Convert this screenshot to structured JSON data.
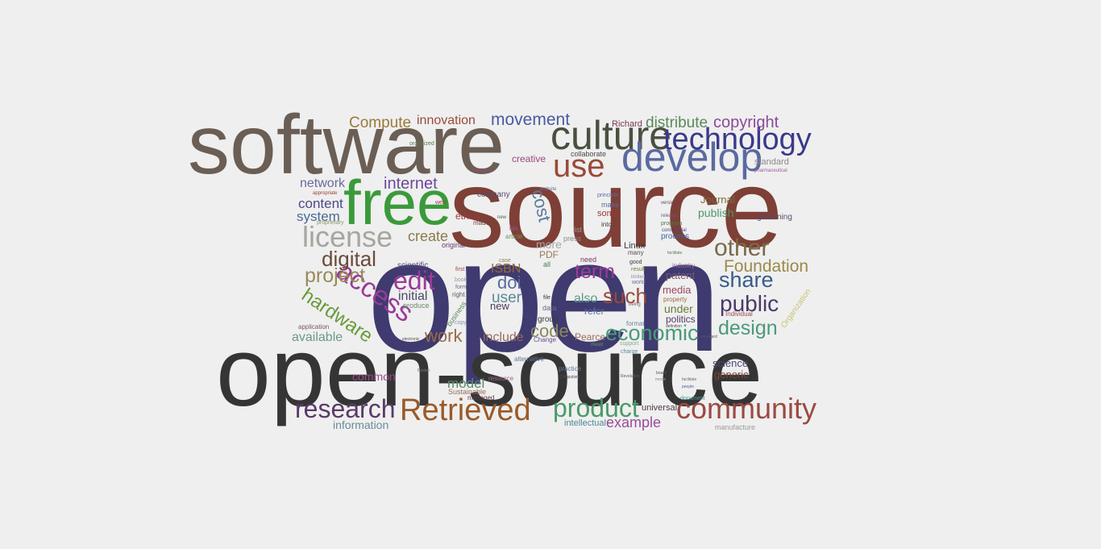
{
  "background_color": "#efefef",
  "words": [
    {
      "text": "open",
      "color": "#3f3a6f"
    },
    {
      "text": "open-source",
      "color": "#353535"
    },
    {
      "text": "software",
      "color": "#6a5e55"
    },
    {
      "text": "source",
      "color": "#7e3f36"
    },
    {
      "text": "free",
      "color": "#3a9a3a"
    },
    {
      "text": "culture",
      "color": "#4a5040"
    },
    {
      "text": "develop",
      "color": "#5a6aa0"
    },
    {
      "text": "technology",
      "color": "#3a3a8a"
    },
    {
      "text": "use",
      "color": "#9a4a3a"
    },
    {
      "text": "license",
      "color": "#a6a6a0"
    },
    {
      "text": "community",
      "color": "#9a4a42"
    },
    {
      "text": "Retrieved",
      "color": "#9a5a2a"
    },
    {
      "text": "research",
      "color": "#5a3a6a"
    },
    {
      "text": "product",
      "color": "#4a9a6a"
    },
    {
      "text": "edit",
      "color": "#9a3a9a"
    },
    {
      "text": "access",
      "color": "#9a3a9a"
    },
    {
      "text": "public",
      "color": "#4a3a6a"
    },
    {
      "text": "other",
      "color": "#7a6a4a"
    },
    {
      "text": "share",
      "color": "#3a5a8a"
    },
    {
      "text": "design",
      "color": "#4a9a7a"
    },
    {
      "text": "economic",
      "color": "#4a9a7a"
    },
    {
      "text": "such",
      "color": "#9a4a3a"
    },
    {
      "text": "term",
      "color": "#9a3a9a"
    },
    {
      "text": "digital",
      "color": "#6a4a3a"
    },
    {
      "text": "project",
      "color": "#9a8a5a"
    },
    {
      "text": "hardware",
      "color": "#6a9a3a"
    },
    {
      "text": "internet",
      "color": "#6a4a9a"
    },
    {
      "text": "cost",
      "color": "#5a7a9a"
    },
    {
      "text": "movement",
      "color": "#4a5aa0"
    },
    {
      "text": "copyright",
      "color": "#8a4a9a"
    },
    {
      "text": "distribute",
      "color": "#5a8a5a"
    },
    {
      "text": "Compute",
      "color": "#9a7a3a"
    },
    {
      "text": "innovation",
      "color": "#9a4a3a"
    },
    {
      "text": "Foundation",
      "color": "#9a8a4a"
    },
    {
      "text": "work",
      "color": "#9a6a4a"
    },
    {
      "text": "code",
      "color": "#8a8a5a"
    },
    {
      "text": "doi",
      "color": "#5a6aa0"
    },
    {
      "text": "user",
      "color": "#5a8a9a"
    },
    {
      "text": "model",
      "color": "#5a8a6a"
    },
    {
      "text": "example",
      "color": "#9a4a9a"
    },
    {
      "text": "common",
      "color": "#9a4a8a"
    },
    {
      "text": "available",
      "color": "#6a9a8a"
    },
    {
      "text": "information",
      "color": "#6a8a9a"
    },
    {
      "text": "create",
      "color": "#8a7a4a"
    },
    {
      "text": "content",
      "color": "#4a4a8a"
    },
    {
      "text": "system",
      "color": "#4a6a9a"
    },
    {
      "text": "network",
      "color": "#6a6a9a"
    },
    {
      "text": "initial",
      "color": "#4a4a6a"
    },
    {
      "text": "ISBN",
      "color": "#9a6a3a"
    },
    {
      "text": "include",
      "color": "#9a6a5a"
    },
    {
      "text": "science",
      "color": "#4a4a7a"
    },
    {
      "text": "generic",
      "color": "#7a4a3a"
    },
    {
      "text": "patent",
      "color": "#7a5a7a"
    },
    {
      "text": "media",
      "color": "#9a4a5a"
    },
    {
      "text": "under",
      "color": "#6a7a3a"
    },
    {
      "text": "politics",
      "color": "#5a3a6a"
    },
    {
      "text": "Journal",
      "color": "#7a6a3a"
    },
    {
      "text": "publish",
      "color": "#4a9a6a"
    },
    {
      "text": "governing",
      "color": "#5a4a6a"
    },
    {
      "text": "standard",
      "color": "#8a8a8a"
    },
    {
      "text": "also",
      "color": "#5a9a8a"
    },
    {
      "text": "new",
      "color": "#4a3a5a"
    },
    {
      "text": "more",
      "color": "#a6a6a6"
    },
    {
      "text": "PDF",
      "color": "#9a7a5a"
    },
    {
      "text": "ethics",
      "color": "#9a3a3a"
    },
    {
      "text": "creative",
      "color": "#9a4a7a"
    },
    {
      "text": "Richard",
      "color": "#7a3a4a"
    },
    {
      "text": "Pearce",
      "color": "#9a6a5a"
    },
    {
      "text": "refer",
      "color": "#5a6aa0"
    },
    {
      "text": "Linux",
      "color": "#3a3a3a"
    },
    {
      "text": "universal",
      "color": "#4a3a4a"
    },
    {
      "text": "intellectual",
      "color": "#4a8a9a"
    },
    {
      "text": "Sustainable",
      "color": "#9a6a5a"
    },
    {
      "text": "manufacture",
      "color": "#9a9a9a"
    },
    {
      "text": "Organization",
      "color": "#c8c470"
    },
    {
      "text": "some",
      "color": "#9a3a3a"
    },
    {
      "text": "company",
      "color": "#5a4a6a"
    },
    {
      "text": "process",
      "color": "#3a6aa0"
    },
    {
      "text": "group",
      "color": "#3a3a3a"
    },
    {
      "text": "data",
      "color": "#6a6a8a"
    },
    {
      "text": "collaborate",
      "color": "#4a4a4a"
    },
    {
      "text": "original",
      "color": "#6a3a6a"
    },
    {
      "text": "Change",
      "color": "#6a4a9a"
    },
    {
      "text": "practice",
      "color": "#5a7a9a"
    },
    {
      "text": "alternative",
      "color": "#5a7a9a"
    },
    {
      "text": "produce",
      "color": "#6a8a6a"
    },
    {
      "text": "scientific",
      "color": "#5a4a7a"
    },
    {
      "text": "managed",
      "color": "#5a3a4a"
    },
    {
      "text": "business",
      "color": "#5a8a5a"
    },
    {
      "text": "application",
      "color": "#7a5a5a"
    },
    {
      "text": "need",
      "color": "#7a3a6a"
    },
    {
      "text": "many",
      "color": "#5a4a4a"
    },
    {
      "text": "good",
      "color": "#3a3a3a"
    },
    {
      "text": "web",
      "color": "#9a3a4a"
    },
    {
      "text": "press",
      "color": "#8a8a8a"
    },
    {
      "text": "make",
      "color": "#5a6aa0"
    },
    {
      "text": "resource",
      "color": "#9a6a8a"
    },
    {
      "text": "document",
      "color": "#4a9a8a"
    },
    {
      "text": "format",
      "color": "#6a8a9a"
    },
    {
      "text": "industry",
      "color": "#9a6a9a"
    },
    {
      "text": "Individual",
      "color": "#9a4a4a"
    },
    {
      "text": "appropriate",
      "color": "#9a3a3a"
    },
    {
      "text": "website",
      "color": "#6a6a9a"
    },
    {
      "text": "principle",
      "color": "#5a6aa0"
    },
    {
      "text": "version",
      "color": "#5a4a6a"
    },
    {
      "text": "release",
      "color": "#6a5a7a"
    },
    {
      "text": "property",
      "color": "#9a6a3a"
    },
    {
      "text": "commercial",
      "color": "#4a4a8a"
    },
    {
      "text": "film",
      "color": "#9a5a9a"
    },
    {
      "text": "article",
      "color": "#6a9a5a"
    },
    {
      "text": "proprietary",
      "color": "#8a9a5a"
    },
    {
      "text": "program",
      "color": "#4a7a4a"
    },
    {
      "text": "facilitate",
      "color": "#6a6a6a"
    },
    {
      "text": "made",
      "color": "#6a4a3a"
    },
    {
      "text": "file",
      "color": "#3a3a3a"
    },
    {
      "text": "case",
      "color": "#8a8a5a"
    },
    {
      "text": "new",
      "color": "#5a5a5a"
    },
    {
      "text": "form",
      "color": "#6a6a8a"
    },
    {
      "text": "right",
      "color": "#5a5a5a"
    },
    {
      "text": "first",
      "color": "#9a4a4a"
    },
    {
      "text": "book",
      "color": "#9a9a9a"
    },
    {
      "text": "copy",
      "color": "#8a9aaa"
    },
    {
      "text": "Medicine",
      "color": "#9a4a6a"
    },
    {
      "text": "organized",
      "color": "#5a7a4a"
    },
    {
      "text": "pharmaceutical",
      "color": "#9a5a9a"
    },
    {
      "text": "electronic",
      "color": "#5a4a4a"
    },
    {
      "text": "Boston",
      "color": "#7a7a7a"
    },
    {
      "text": "support",
      "color": "#8aaa8a"
    },
    {
      "text": "result",
      "color": "#7a7a3a"
    },
    {
      "text": "world",
      "color": "#6a6a9a"
    },
    {
      "text": "limited",
      "color": "#9a8a9a"
    },
    {
      "text": "being",
      "color": "#7a6a5a"
    },
    {
      "text": "movie",
      "color": "#8a8a8a"
    },
    {
      "text": "board",
      "color": "#5a5a5a"
    },
    {
      "text": "charge",
      "color": "#5a8a9a"
    },
    {
      "text": "Revolution",
      "color": "#5a5a5a"
    },
    {
      "text": "music",
      "color": "#6a9a6a"
    },
    {
      "text": "into",
      "color": "#3a3a3a"
    },
    {
      "text": "list",
      "color": "#9a9a9a"
    },
    {
      "text": "all",
      "color": "#4a7a4a"
    },
    {
      "text": "people",
      "color": "#5a5a9a"
    },
    {
      "text": "Computism",
      "color": "#4a4a5a"
    },
    {
      "text": "facilitate",
      "color": "#5a7a5a"
    },
    {
      "text": "emerged",
      "color": "#5a5a5a"
    },
    {
      "text": "definition",
      "color": "#5a4a4a"
    }
  ]
}
